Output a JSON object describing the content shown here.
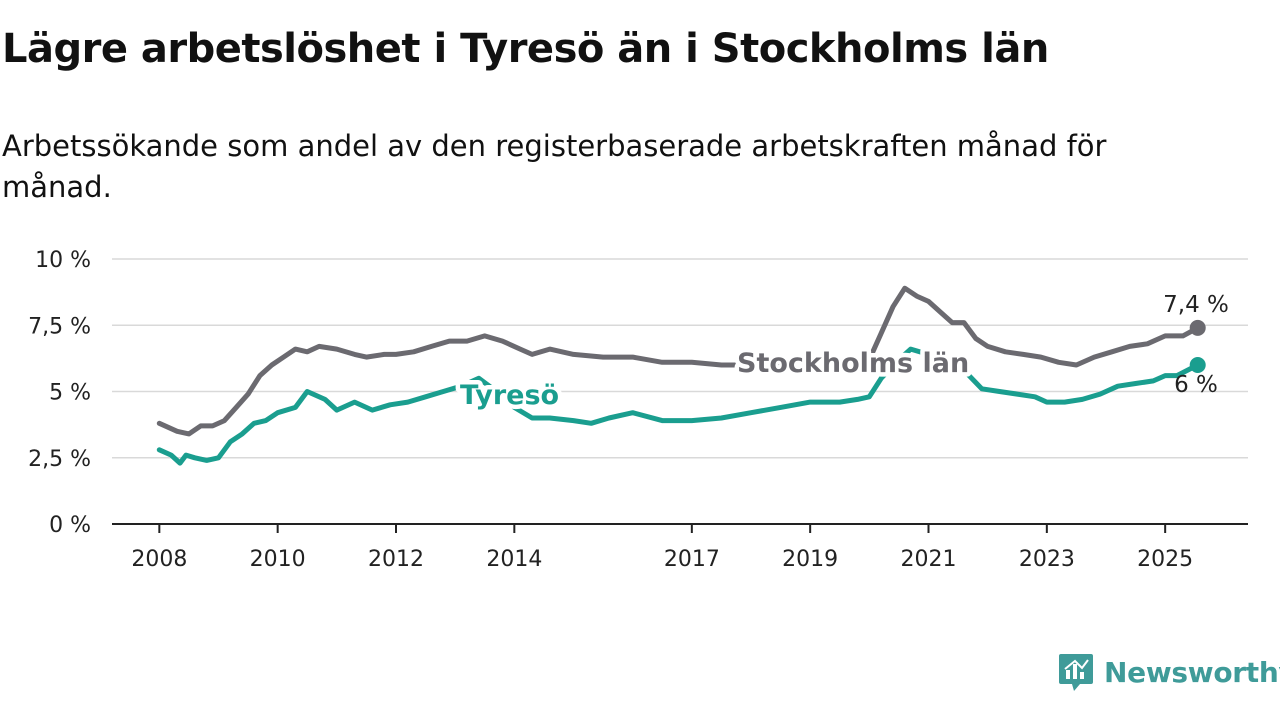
{
  "title": "Lägre arbetslöshet i Tyresö än i Stockholms län",
  "subtitle": "Arbetssökande som andel av den registerbaserade arbetskraften månad för månad.",
  "brand": {
    "name": "Newsworthy",
    "color": "#3f9b99",
    "icon": "newsworthy-logo-icon"
  },
  "chart_data": {
    "type": "line",
    "y_unit": "%",
    "ylim": [
      0,
      10
    ],
    "y_ticks": [
      "0 %",
      "2,5 %",
      "5 %",
      "7,5 %",
      "10 %"
    ],
    "y_tick_values": [
      0,
      2.5,
      5,
      7.5,
      10
    ],
    "x_ticks": [
      "2008",
      "2010",
      "2012",
      "2014",
      "2017",
      "2019",
      "2021",
      "2023",
      "2025"
    ],
    "x_tick_values": [
      2008,
      2010,
      2012,
      2014,
      2017,
      2019,
      2021,
      2023,
      2025
    ],
    "xlim": [
      2007.2,
      2026.4
    ],
    "grid": true,
    "series": [
      {
        "name": "Stockholms län",
        "color": "#6b6a70",
        "end_label": "7,4 %",
        "x": [
          2008.0,
          2008.3,
          2008.5,
          2008.7,
          2008.9,
          2009.1,
          2009.3,
          2009.5,
          2009.7,
          2009.9,
          2010.1,
          2010.3,
          2010.5,
          2010.7,
          2011.0,
          2011.3,
          2011.5,
          2011.8,
          2012.0,
          2012.3,
          2012.6,
          2012.9,
          2013.2,
          2013.5,
          2013.8,
          2014.1,
          2014.3,
          2014.6,
          2015.0,
          2015.5,
          2016.0,
          2016.5,
          2017.0,
          2017.5,
          2018.0,
          2018.5,
          2019.0,
          2019.5,
          2020.0,
          2020.2,
          2020.4,
          2020.6,
          2020.8,
          2021.0,
          2021.2,
          2021.4,
          2021.6,
          2021.8,
          2022.0,
          2022.3,
          2022.6,
          2022.9,
          2023.2,
          2023.5,
          2023.8,
          2024.1,
          2024.4,
          2024.7,
          2025.0,
          2025.3,
          2025.55
        ],
        "y": [
          3.8,
          3.5,
          3.4,
          3.7,
          3.7,
          3.9,
          4.4,
          4.9,
          5.6,
          6.0,
          6.3,
          6.6,
          6.5,
          6.7,
          6.6,
          6.4,
          6.3,
          6.4,
          6.4,
          6.5,
          6.7,
          6.9,
          6.9,
          7.1,
          6.9,
          6.6,
          6.4,
          6.6,
          6.4,
          6.3,
          6.3,
          6.1,
          6.1,
          6.0,
          6.0,
          6.0,
          6.0,
          6.1,
          6.2,
          7.2,
          8.2,
          8.9,
          8.6,
          8.4,
          8.0,
          7.6,
          7.6,
          7.0,
          6.7,
          6.5,
          6.4,
          6.3,
          6.1,
          6.0,
          6.3,
          6.5,
          6.7,
          6.8,
          7.1,
          7.1,
          7.4
        ]
      },
      {
        "name": "Tyresö",
        "color": "#1a9e8f",
        "end_label": "6 %",
        "x": [
          2008.0,
          2008.2,
          2008.35,
          2008.45,
          2008.6,
          2008.8,
          2009.0,
          2009.2,
          2009.4,
          2009.6,
          2009.8,
          2010.0,
          2010.3,
          2010.5,
          2010.8,
          2011.0,
          2011.3,
          2011.6,
          2011.9,
          2012.2,
          2012.5,
          2012.8,
          2013.1,
          2013.4,
          2013.7,
          2014.0,
          2014.3,
          2014.6,
          2015.0,
          2015.3,
          2015.6,
          2016.0,
          2016.5,
          2017.0,
          2017.5,
          2018.0,
          2018.5,
          2019.0,
          2019.5,
          2019.8,
          2020.0,
          2020.2,
          2020.5,
          2020.7,
          2021.0,
          2021.3,
          2021.6,
          2021.9,
          2022.2,
          2022.5,
          2022.8,
          2023.0,
          2023.3,
          2023.6,
          2023.9,
          2024.2,
          2024.5,
          2024.8,
          2025.0,
          2025.2,
          2025.55
        ],
        "y": [
          2.8,
          2.6,
          2.3,
          2.6,
          2.5,
          2.4,
          2.5,
          3.1,
          3.4,
          3.8,
          3.9,
          4.2,
          4.4,
          5.0,
          4.7,
          4.3,
          4.6,
          4.3,
          4.5,
          4.6,
          4.8,
          5.0,
          5.2,
          5.5,
          5.0,
          4.4,
          4.0,
          4.0,
          3.9,
          3.8,
          4.0,
          4.2,
          3.9,
          3.9,
          4.0,
          4.2,
          4.4,
          4.6,
          4.6,
          4.7,
          4.8,
          5.5,
          6.2,
          6.6,
          6.4,
          6.1,
          5.8,
          5.1,
          5.0,
          4.9,
          4.8,
          4.6,
          4.6,
          4.7,
          4.9,
          5.2,
          5.3,
          5.4,
          5.6,
          5.6,
          6.0
        ]
      }
    ]
  }
}
